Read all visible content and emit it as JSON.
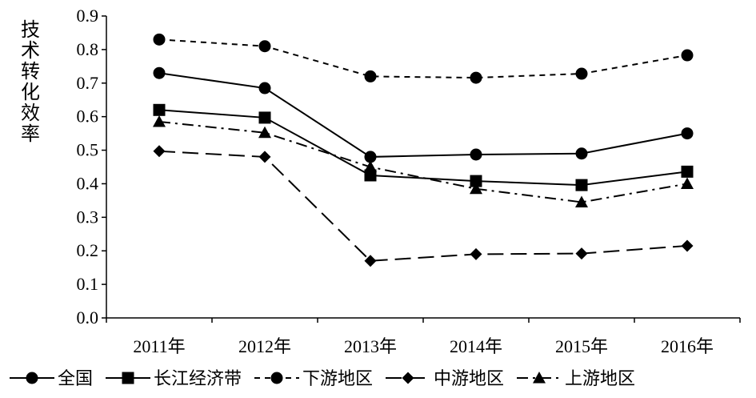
{
  "chart_data": {
    "type": "line",
    "title": "",
    "xlabel": "",
    "ylabel": "技术转化效率",
    "categories": [
      "2011年",
      "2012年",
      "2013年",
      "2014年",
      "2015年",
      "2016年"
    ],
    "ylim": [
      0,
      0.9
    ],
    "yticks": [
      "0.0",
      "0.1",
      "0.2",
      "0.3",
      "0.4",
      "0.5",
      "0.6",
      "0.7",
      "0.8",
      "0.9"
    ],
    "grid": false,
    "legend_position": "bottom",
    "series": [
      {
        "name": "全国",
        "values": [
          0.73,
          0.685,
          0.48,
          0.487,
          0.49,
          0.55
        ],
        "marker": "circle",
        "line_style": "solid"
      },
      {
        "name": "长江经济带",
        "values": [
          0.62,
          0.597,
          0.425,
          0.408,
          0.396,
          0.436
        ],
        "marker": "square",
        "line_style": "solid"
      },
      {
        "name": "下游地区",
        "values": [
          0.83,
          0.81,
          0.72,
          0.716,
          0.728,
          0.783
        ],
        "marker": "circle",
        "line_style": "short-dash"
      },
      {
        "name": "中游地区",
        "values": [
          0.497,
          0.48,
          0.17,
          0.19,
          0.192,
          0.215
        ],
        "marker": "diamond",
        "line_style": "long-dash"
      },
      {
        "name": "上游地区",
        "values": [
          0.585,
          0.552,
          0.45,
          0.385,
          0.345,
          0.4
        ],
        "marker": "triangle",
        "line_style": "dash-dot"
      }
    ]
  }
}
